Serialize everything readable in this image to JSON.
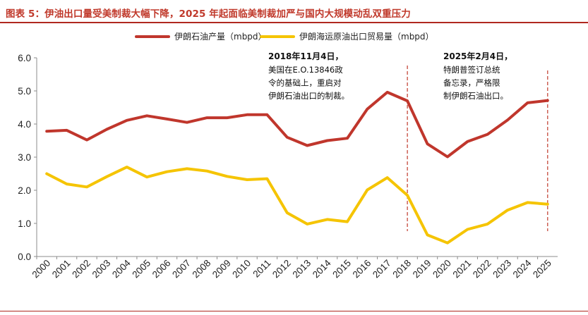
{
  "title": "图表 5：伊油出口量受美制裁大幅下降，2025 年起面临美制裁加严与国内大规模动乱双重压力",
  "colors": {
    "accent": "#c0392b",
    "series1": "#c0362c",
    "series2": "#f5c400",
    "marker": "#c0392b"
  },
  "chart_data": {
    "type": "line",
    "categories": [
      "2000",
      "2001",
      "2002",
      "2003",
      "2004",
      "2005",
      "2006",
      "2007",
      "2008",
      "2009",
      "2010",
      "2011",
      "2012",
      "2013",
      "2014",
      "2015",
      "2016",
      "2017",
      "2018",
      "2019",
      "2020",
      "2021",
      "2022",
      "2023",
      "2024",
      "2025"
    ],
    "series": [
      {
        "name": "伊朗石油产量（mbpd）",
        "values": [
          3.78,
          3.81,
          3.52,
          3.84,
          4.11,
          4.25,
          4.15,
          4.05,
          4.19,
          4.19,
          4.28,
          4.28,
          3.6,
          3.35,
          3.5,
          3.57,
          4.45,
          4.96,
          4.7,
          3.4,
          3.01,
          3.47,
          3.69,
          4.12,
          4.64,
          4.71
        ]
      },
      {
        "name": "伊朗海运原油出口贸易量（mbpd）",
        "values": [
          2.5,
          2.19,
          2.1,
          2.41,
          2.7,
          2.4,
          2.56,
          2.65,
          2.58,
          2.42,
          2.32,
          2.35,
          1.32,
          0.98,
          1.12,
          1.05,
          2.01,
          2.38,
          1.85,
          0.65,
          0.41,
          0.82,
          0.98,
          1.4,
          1.63,
          1.58
        ]
      }
    ],
    "ylim": [
      0,
      6
    ],
    "yticks": [
      "0.0",
      "1.0",
      "2.0",
      "3.0",
      "4.0",
      "5.0",
      "6.0"
    ],
    "markers": [
      {
        "x": "2018",
        "heading": "2018年11月4日，",
        "lines": [
          "美国在E.O.13846政",
          "令的基础上，重启对",
          "伊朗石油出口的制裁。"
        ]
      },
      {
        "x": "2025",
        "heading": "2025年2月4日，",
        "lines": [
          "特朗普签订总统",
          "备忘录，严格限",
          "制伊朗石油出口。"
        ]
      }
    ]
  }
}
